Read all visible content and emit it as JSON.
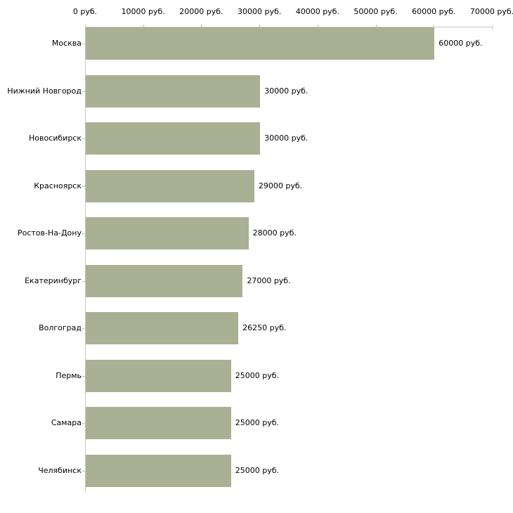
{
  "chart_data": {
    "type": "bar",
    "orientation": "horizontal",
    "title": "",
    "xlabel": "",
    "ylabel": "",
    "unit": "руб.",
    "xlim": [
      0,
      70000
    ],
    "grid": false,
    "legend": null,
    "categories": [
      "Москва",
      "Нижний Новгород",
      "Новосибирск",
      "Красноярск",
      "Ростов-На-Дону",
      "Екатеринбург",
      "Волгоград",
      "Пермь",
      "Самара",
      "Челябинск"
    ],
    "values": [
      60000,
      30000,
      30000,
      29000,
      28000,
      27000,
      26250,
      25000,
      25000,
      25000
    ],
    "value_labels": [
      "60000 руб.",
      "30000 руб.",
      "30000 руб.",
      "29000 руб.",
      "28000 руб.",
      "27000 руб.",
      "26250 руб.",
      "25000 руб.",
      "25000 руб.",
      "25000 руб."
    ],
    "x_ticks": [
      {
        "value": 0,
        "label": "0 руб."
      },
      {
        "value": 10000,
        "label": "10000 руб."
      },
      {
        "value": 20000,
        "label": "20000 руб."
      },
      {
        "value": 30000,
        "label": "30000 руб."
      },
      {
        "value": 40000,
        "label": "40000 руб."
      },
      {
        "value": 50000,
        "label": "50000 руб."
      },
      {
        "value": 60000,
        "label": "60000 руб."
      },
      {
        "value": 70000,
        "label": "70000 руб."
      }
    ],
    "colors": {
      "bar": "#aab094",
      "axis_line": "#c6c6c6",
      "tick_mark": "#c9c98e",
      "text": "#000000",
      "background": "#ffffff"
    }
  }
}
